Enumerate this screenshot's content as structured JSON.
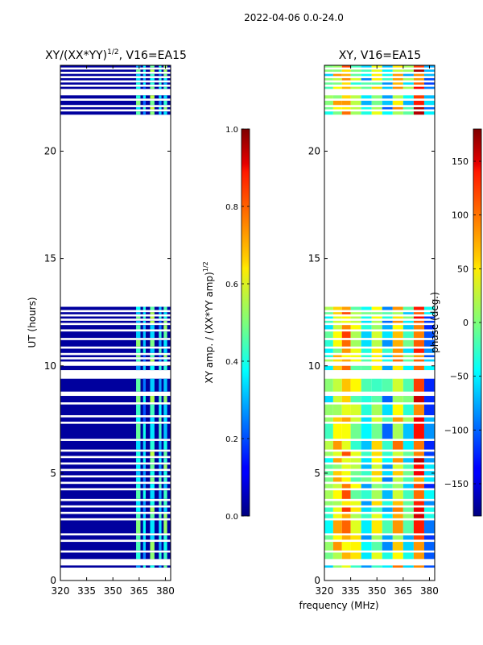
{
  "figure_title": "2022-04-06 0.0-24.0",
  "shared_xlabel": "frequency (MHz)",
  "colors": {
    "background": "#ffffff",
    "no_data": "#ffffff",
    "frame": "#000000"
  },
  "chart_data": [
    {
      "type": "heatmap",
      "title": "XY/(XX*YY)",
      "title_superscript": "1/2",
      "title_suffix": ", V16=EA15",
      "xlabel": "",
      "ylabel": "UT (hours)",
      "xlim": [
        320,
        383
      ],
      "ylim": [
        0,
        24
      ],
      "xticks": [
        320,
        335,
        350,
        365,
        380
      ],
      "yticks": [
        0,
        5,
        10,
        15,
        20
      ],
      "colormap": "jet",
      "colorbar": {
        "label": "XY amp. / (XX*YY amp)",
        "label_superscript": "1/2",
        "range": [
          0,
          1
        ],
        "ticks": [
          0.0,
          0.2,
          0.4,
          0.6,
          0.8,
          1.0
        ],
        "tick_labels": [
          "0.0",
          "0.2",
          "0.4",
          "0.6",
          "0.8",
          "1.0"
        ]
      },
      "data_segments_hours": [
        [
          0.6,
          0.7
        ],
        [
          1.0,
          1.3
        ],
        [
          1.4,
          1.8
        ],
        [
          1.9,
          2.1
        ],
        [
          2.2,
          2.8
        ],
        [
          2.9,
          3.1
        ],
        [
          3.2,
          3.4
        ],
        [
          3.5,
          3.7
        ],
        [
          3.8,
          4.2
        ],
        [
          4.3,
          4.5
        ],
        [
          4.6,
          4.8
        ],
        [
          4.9,
          5.1
        ],
        [
          5.2,
          5.4
        ],
        [
          5.5,
          5.7
        ],
        [
          5.8,
          6.0
        ],
        [
          6.1,
          6.5
        ],
        [
          6.6,
          7.3
        ],
        [
          7.4,
          7.6
        ],
        [
          7.7,
          8.2
        ],
        [
          8.3,
          8.6
        ],
        [
          8.8,
          9.4
        ],
        [
          9.8,
          10.0
        ],
        [
          10.2,
          10.3
        ],
        [
          10.4,
          10.5
        ],
        [
          10.6,
          10.8
        ],
        [
          10.9,
          11.2
        ],
        [
          11.3,
          11.6
        ],
        [
          11.7,
          11.9
        ],
        [
          12.0,
          12.1
        ],
        [
          12.2,
          12.3
        ],
        [
          12.4,
          12.5
        ],
        [
          12.6,
          12.75
        ],
        [
          21.7,
          21.85
        ],
        [
          21.95,
          22.05
        ],
        [
          22.15,
          22.35
        ],
        [
          22.45,
          22.6
        ],
        [
          22.9,
          23.0
        ],
        [
          23.1,
          23.2
        ],
        [
          23.3,
          23.4
        ],
        [
          23.5,
          23.6
        ],
        [
          23.7,
          23.8
        ],
        [
          23.9,
          24.0
        ]
      ],
      "background_level": 0.03,
      "bright_channels_mhz": [
        {
          "center": 364.5,
          "width": 2.5,
          "level": 0.4
        },
        {
          "center": 368.0,
          "width": 1.5,
          "level": 0.3
        },
        {
          "center": 372.5,
          "width": 2.5,
          "level": 0.45
        },
        {
          "center": 377.0,
          "width": 1.5,
          "level": 0.35
        },
        {
          "center": 380.0,
          "width": 2.0,
          "level": 0.42
        }
      ]
    },
    {
      "type": "heatmap",
      "title": "XY, V16=EA15",
      "xlabel": "",
      "ylabel": "",
      "xlim": [
        320,
        383
      ],
      "ylim": [
        0,
        24
      ],
      "xticks": [
        320,
        335,
        350,
        365,
        380
      ],
      "yticks": [
        0,
        5,
        10,
        15,
        20
      ],
      "colormap": "jet",
      "colorbar": {
        "label": "phase (deg.)",
        "range": [
          -180,
          180
        ],
        "ticks": [
          -150,
          -100,
          -50,
          0,
          50,
          100,
          150
        ],
        "tick_labels": [
          "−150",
          "−100",
          "−50",
          "0",
          "50",
          "100",
          "150"
        ]
      },
      "data_segments_hours": [
        [
          0.6,
          0.7
        ],
        [
          1.0,
          1.3
        ],
        [
          1.4,
          1.8
        ],
        [
          1.9,
          2.1
        ],
        [
          2.2,
          2.8
        ],
        [
          2.9,
          3.1
        ],
        [
          3.2,
          3.4
        ],
        [
          3.5,
          3.7
        ],
        [
          3.8,
          4.2
        ],
        [
          4.3,
          4.5
        ],
        [
          4.6,
          4.8
        ],
        [
          4.9,
          5.1
        ],
        [
          5.2,
          5.4
        ],
        [
          5.5,
          5.7
        ],
        [
          5.8,
          6.0
        ],
        [
          6.1,
          6.5
        ],
        [
          6.6,
          7.3
        ],
        [
          7.4,
          7.6
        ],
        [
          7.7,
          8.2
        ],
        [
          8.3,
          8.6
        ],
        [
          8.8,
          9.4
        ],
        [
          9.8,
          10.0
        ],
        [
          10.2,
          10.3
        ],
        [
          10.4,
          10.5
        ],
        [
          10.6,
          10.8
        ],
        [
          10.9,
          11.2
        ],
        [
          11.3,
          11.6
        ],
        [
          11.7,
          11.9
        ],
        [
          12.0,
          12.1
        ],
        [
          12.2,
          12.3
        ],
        [
          12.4,
          12.5
        ],
        [
          12.6,
          12.75
        ],
        [
          21.7,
          21.85
        ],
        [
          21.95,
          22.05
        ],
        [
          22.15,
          22.35
        ],
        [
          22.45,
          22.6
        ],
        [
          22.9,
          23.0
        ],
        [
          23.1,
          23.2
        ],
        [
          23.3,
          23.4
        ],
        [
          23.5,
          23.6
        ],
        [
          23.7,
          23.8
        ],
        [
          23.9,
          24.0
        ]
      ],
      "phase_stripes_mhz": [
        {
          "from": 320,
          "to": 325,
          "phase_deg": -20
        },
        {
          "from": 325,
          "to": 330,
          "phase_deg": 40
        },
        {
          "from": 330,
          "to": 335,
          "phase_deg": 75
        },
        {
          "from": 335,
          "to": 341,
          "phase_deg": 10
        },
        {
          "from": 341,
          "to": 347,
          "phase_deg": -45
        },
        {
          "from": 347,
          "to": 353,
          "phase_deg": 20
        },
        {
          "from": 353,
          "to": 359,
          "phase_deg": -60
        },
        {
          "from": 359,
          "to": 365,
          "phase_deg": 55
        },
        {
          "from": 365,
          "to": 371,
          "phase_deg": -30
        },
        {
          "from": 371,
          "to": 377,
          "phase_deg": 120
        },
        {
          "from": 377,
          "to": 383,
          "phase_deg": -80
        }
      ]
    }
  ]
}
